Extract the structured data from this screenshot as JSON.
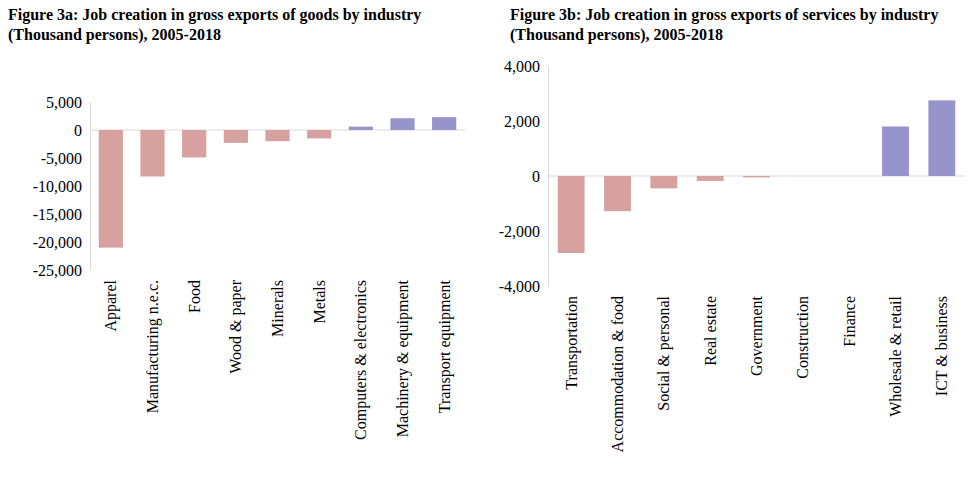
{
  "chart_data": [
    {
      "type": "bar",
      "title": "Figure 3a: Job creation in gross exports of goods by industry (Thousand persons), 2005-2018",
      "categories": [
        "Apparel",
        "Manufacturing n.e.c.",
        "Food",
        "Wood & paper",
        "Minerals",
        "Metals",
        "Computers & electronics",
        "Machinery & equipment",
        "Transport equipment"
      ],
      "values": [
        -21000,
        -8300,
        -4900,
        -2300,
        -2000,
        -1500,
        600,
        2100,
        2300
      ],
      "colors": [
        "#d6a19e",
        "#d6a19e",
        "#d6a19e",
        "#d6a19e",
        "#d6a19e",
        "#d6a19e",
        "#9694cb",
        "#9694cb",
        "#9694cb"
      ],
      "ylim": [
        -25000,
        5000
      ],
      "yticks": [
        {
          "value": 5000,
          "label": "5,000"
        },
        0,
        {
          "value": -5000,
          "label": "-5,000"
        },
        {
          "value": -10000,
          "label": "-10,000"
        },
        {
          "value": -15000,
          "label": "-15,000"
        },
        {
          "value": -20000,
          "label": "-20,000"
        },
        {
          "value": -25000,
          "label": "-25,000"
        }
      ],
      "grid": false
    },
    {
      "type": "bar",
      "title": "Figure 3b: Job creation in gross exports of services by industry (Thousand persons), 2005-2018",
      "categories": [
        "Transportation",
        "Accommodation & food",
        "Social & personal",
        "Real estate",
        "Government",
        "Construction",
        "Finance",
        "Wholesale & retail",
        "ICT & business"
      ],
      "values": [
        -2800,
        -1280,
        -450,
        -180,
        -50,
        0,
        0,
        1800,
        2750
      ],
      "colors": [
        "#d6a19e",
        "#d6a19e",
        "#d6a19e",
        "#d6a19e",
        "#d6a19e",
        "#d6a19e",
        "#d6a19e",
        "#9694cb",
        "#9694cb"
      ],
      "ylim": [
        -4000,
        4000
      ],
      "yticks": [
        {
          "value": 4000,
          "label": "4,000"
        },
        {
          "value": 2000,
          "label": "2,000"
        },
        0,
        {
          "value": -2000,
          "label": "-2,000"
        },
        {
          "value": -4000,
          "label": "-4,000"
        }
      ],
      "grid": false
    }
  ]
}
